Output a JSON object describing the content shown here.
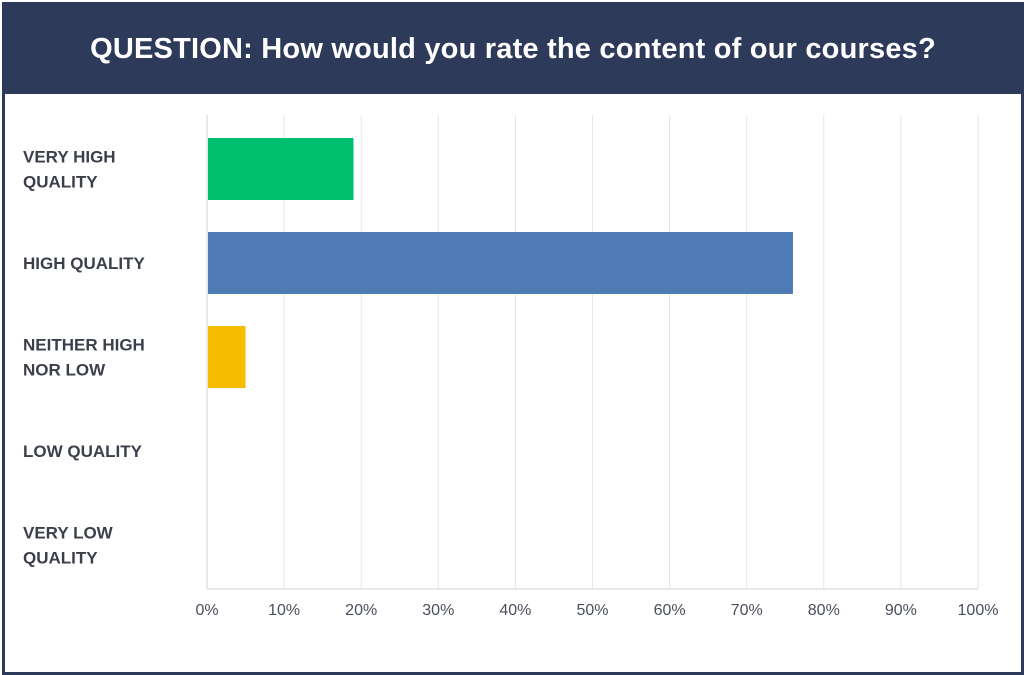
{
  "header": {
    "title": "QUESTION: How would you rate the content of our courses?"
  },
  "colors": {
    "header_bg": "#2e3a59",
    "gridline": "#e6e6e6",
    "axis": "#d0d0d0"
  },
  "chart_data": {
    "type": "bar",
    "orientation": "horizontal",
    "title": "",
    "xlabel": "",
    "ylabel": "",
    "categories": [
      [
        "VERY HIGH",
        "QUALITY"
      ],
      [
        "HIGH QUALITY"
      ],
      [
        "NEITHER HIGH",
        "NOR LOW"
      ],
      [
        "LOW QUALITY"
      ],
      [
        "VERY LOW",
        "QUALITY"
      ]
    ],
    "values": [
      0.19,
      0.76,
      0.05,
      0,
      0
    ],
    "bar_colors": [
      "#00bf6f",
      "#4f7bb5",
      "#f5bc00",
      "#4f7bb5",
      "#4f7bb5"
    ],
    "xlim": [
      0,
      1
    ],
    "xticks": [
      "0%",
      "10%",
      "20%",
      "30%",
      "40%",
      "50%",
      "60%",
      "70%",
      "80%",
      "90%",
      "100%"
    ],
    "grid": true,
    "legend": "none"
  }
}
